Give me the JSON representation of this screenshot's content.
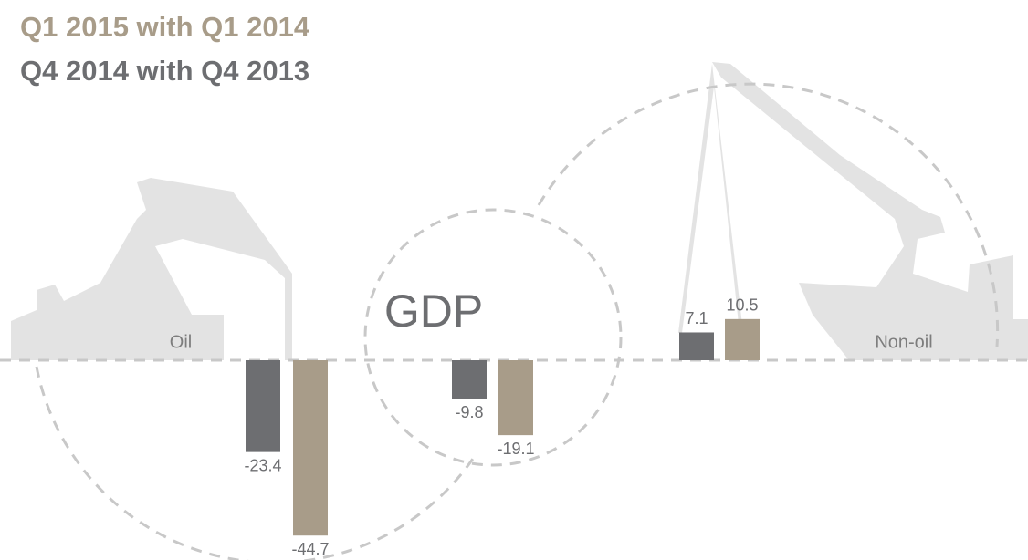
{
  "chart_data": {
    "type": "bar",
    "categories": [
      "Oil",
      "GDP",
      "Non-oil"
    ],
    "series": [
      {
        "name": "Q4 2014 with Q4 2013",
        "color": "#6d6e71",
        "values": [
          -23.4,
          -9.8,
          7.1
        ]
      },
      {
        "name": "Q1 2015 with Q1 2014",
        "color": "#a89c89",
        "values": [
          -44.7,
          -19.1,
          10.5
        ]
      }
    ]
  }
}
